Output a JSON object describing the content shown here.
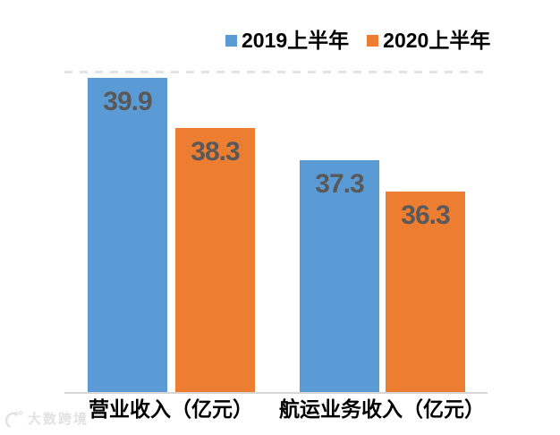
{
  "chart_data": {
    "type": "bar",
    "title": "",
    "categories": [
      "营业收入（亿元）",
      "航运业务收入（亿元）"
    ],
    "series": [
      {
        "name": "2019上半年",
        "color": "#5B9BD5",
        "values": [
          39.9,
          37.3
        ]
      },
      {
        "name": "2020上半年",
        "color": "#ED7D31",
        "values": [
          38.3,
          36.3
        ]
      }
    ],
    "value_label_color": "#595959",
    "legend_position": "top",
    "axis": {
      "y_min": 30,
      "y_gridline_value": 40,
      "gridline_style": "dashed",
      "gridline_color": "#e3e3e3",
      "baseline_color": "#d6d6d6",
      "x_axis_visible": true,
      "y_axis_visible": false
    }
  },
  "watermark": {
    "text": "大数跨境"
  }
}
